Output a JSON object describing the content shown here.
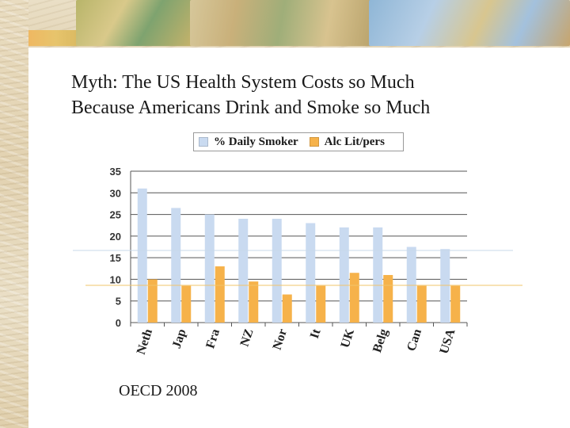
{
  "title_lines": [
    "Myth: The US Health System Costs so Much",
    "Because Americans Drink and Smoke so Much"
  ],
  "source": "OECD 2008",
  "colors": {
    "smoker": "#c9daf0",
    "alcohol": "#f6b24a",
    "gridline": "#555555",
    "axis_text": "#333333",
    "guide_blue": "#c8d8ea",
    "guide_orange": "#f1c46b"
  },
  "chart_data": {
    "type": "bar",
    "categories": [
      "Neth",
      "Jap",
      "Fra",
      "NZ",
      "Nor",
      "It",
      "UK",
      "Belg",
      "Can",
      "USA"
    ],
    "series": [
      {
        "name": "% Daily Smoker",
        "values": [
          31,
          26.5,
          25,
          24,
          24,
          23,
          22,
          22,
          17.5,
          17
        ]
      },
      {
        "name": "Alc Lit/pers",
        "values": [
          10,
          8.5,
          13,
          9.5,
          6.5,
          8.5,
          11.5,
          11,
          8.5,
          8.5
        ]
      }
    ],
    "ylim": [
      0,
      35
    ],
    "yticks": [
      0,
      5,
      10,
      15,
      20,
      25,
      30,
      35
    ],
    "grid": true,
    "legend": "top"
  }
}
